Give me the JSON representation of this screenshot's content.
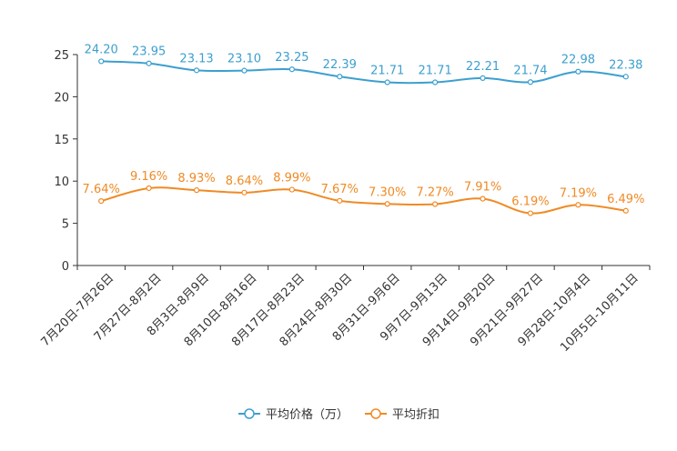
{
  "chart_data": {
    "type": "line",
    "title": "",
    "xlabel": "",
    "ylabel": "",
    "ylim": [
      0,
      25
    ],
    "yticks": [
      0,
      5,
      10,
      15,
      20,
      25
    ],
    "grid": false,
    "legend_position": "bottom-center",
    "categories": [
      "7月20日-7月26日",
      "7月27日-8月2日",
      "8月3日-8月9日",
      "8月10日-8月16日",
      "8月17日-8月23日",
      "8月24日-8月30日",
      "8月31日-9月6日",
      "9月7日-9月13日",
      "9月14日-9月20日",
      "9月21日-9月27日",
      "9月28日-10月4日",
      "10月5日-10月11日"
    ],
    "series": [
      {
        "name": "平均价格（万）",
        "color": "#3c9fcf",
        "values": [
          24.2,
          23.95,
          23.13,
          23.1,
          23.25,
          22.39,
          21.71,
          21.71,
          22.21,
          21.74,
          22.98,
          22.38
        ],
        "labels": [
          "24.20",
          "23.95",
          "23.13",
          "23.10",
          "23.25",
          "22.39",
          "21.71",
          "21.71",
          "22.21",
          "21.74",
          "22.98",
          "22.38"
        ]
      },
      {
        "name": "平均折扣",
        "color": "#f08a24",
        "values": [
          7.64,
          9.16,
          8.93,
          8.64,
          8.99,
          7.67,
          7.3,
          7.27,
          7.91,
          6.19,
          7.19,
          6.49
        ],
        "labels": [
          "7.64%",
          "9.16%",
          "8.93%",
          "8.64%",
          "8.99%",
          "7.67%",
          "7.30%",
          "7.27%",
          "7.91%",
          "6.19%",
          "7.19%",
          "6.49%"
        ]
      }
    ]
  }
}
